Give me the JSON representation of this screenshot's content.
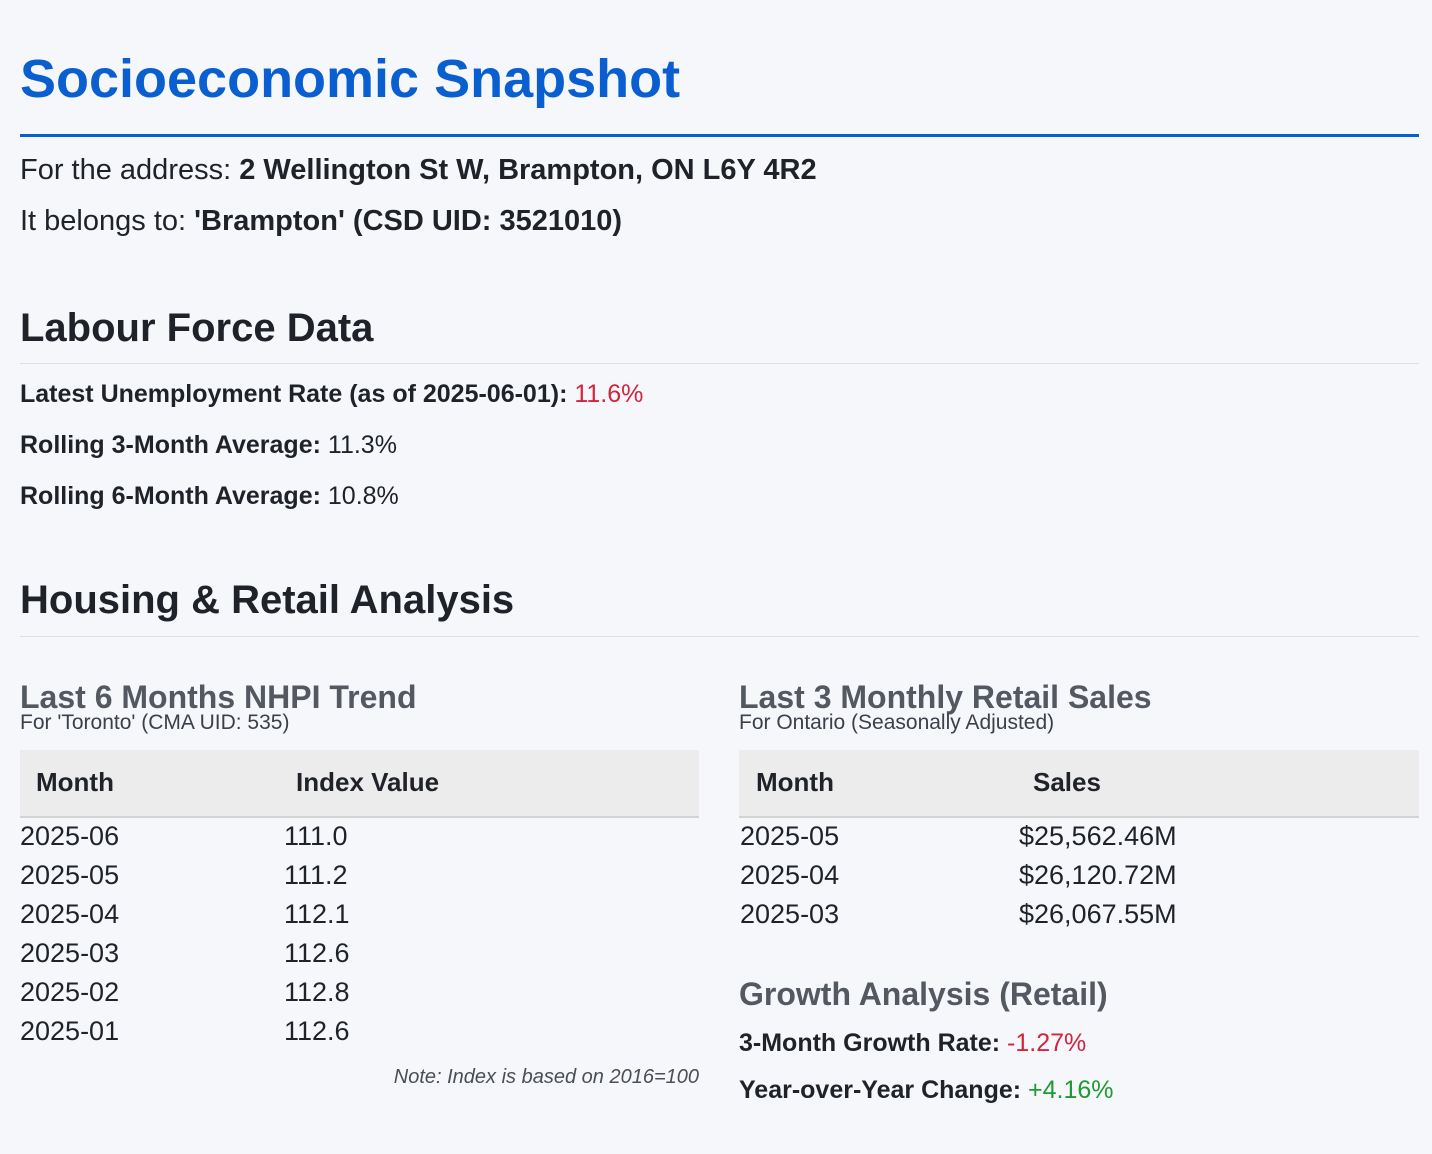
{
  "page": {
    "title": "Socioeconomic Snapshot"
  },
  "location": {
    "address_label": "For the address:",
    "address": "2 Wellington St W, Brampton, ON L6Y 4R2",
    "belongs_label": "It belongs to:",
    "csd": "'Brampton' (CSD UID: 3521010)"
  },
  "labour": {
    "heading": "Labour Force Data",
    "latest_label": "Latest Unemployment Rate (as of 2025-06-01):",
    "latest_value": "11.6%",
    "avg3_label": "Rolling 3-Month Average:",
    "avg3_value": "11.3%",
    "avg6_label": "Rolling 6-Month Average:",
    "avg6_value": "10.8%"
  },
  "housing_retail": {
    "heading": "Housing & Retail Analysis"
  },
  "nhpi": {
    "heading": "Last 6 Months NHPI Trend",
    "subtitle": "For 'Toronto' (CMA UID: 535)",
    "columns": [
      "Month",
      "Index Value"
    ],
    "rows": [
      [
        "2025-06",
        "111.0"
      ],
      [
        "2025-05",
        "111.2"
      ],
      [
        "2025-04",
        "112.1"
      ],
      [
        "2025-03",
        "112.6"
      ],
      [
        "2025-02",
        "112.8"
      ],
      [
        "2025-01",
        "112.6"
      ]
    ],
    "note": "Note: Index is based on 2016=100"
  },
  "retail": {
    "heading": "Last 3 Monthly Retail Sales",
    "subtitle": "For Ontario (Seasonally Adjusted)",
    "columns": [
      "Month",
      "Sales"
    ],
    "rows": [
      [
        "2025-05",
        "$25,562.46M"
      ],
      [
        "2025-04",
        "$26,120.72M"
      ],
      [
        "2025-03",
        "$26,067.55M"
      ]
    ]
  },
  "growth": {
    "heading": "Growth Analysis (Retail)",
    "rate3_label": "3-Month Growth Rate:",
    "rate3_value": "-1.27%",
    "yoy_label": "Year-over-Year Change:",
    "yoy_value": "+4.16%"
  },
  "colors": {
    "accent": "#0a5fd0",
    "negative": "#d1243d",
    "positive": "#1e9933",
    "table_header_bg": "#ececec"
  }
}
